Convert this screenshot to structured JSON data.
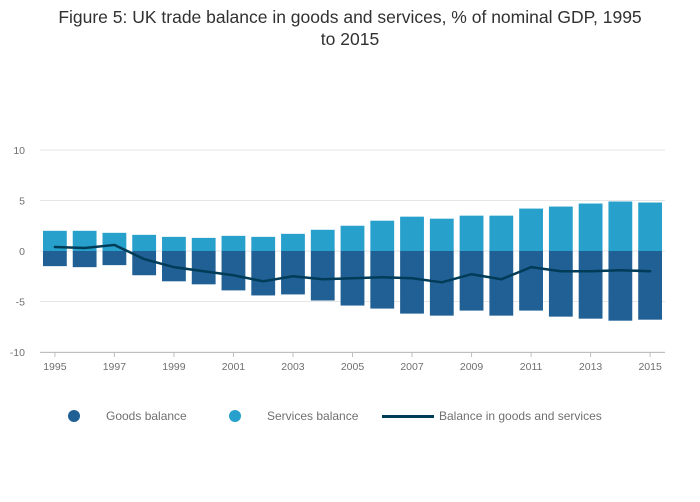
{
  "chart_data": {
    "type": "bar",
    "title_lines": [
      "Figure 5: UK trade balance in goods and services, % of nominal GDP, 1995",
      "to 2015"
    ],
    "xlabel": "",
    "ylabel": "",
    "x": [
      1995,
      1996,
      1997,
      1998,
      1999,
      2000,
      2001,
      2002,
      2003,
      2004,
      2005,
      2006,
      2007,
      2008,
      2009,
      2010,
      2011,
      2012,
      2013,
      2014,
      2015
    ],
    "x_tick_labels": [
      "1995",
      "1997",
      "1999",
      "2001",
      "2003",
      "2005",
      "2007",
      "2009",
      "2011",
      "2013",
      "2015"
    ],
    "ylim": [
      -10,
      10
    ],
    "y_ticks": [
      10,
      5,
      0,
      -5,
      -10
    ],
    "y_tick_labels": [
      "10",
      "5",
      "0",
      "-5",
      "-10"
    ],
    "grid": true,
    "legend_position": "bottom",
    "series": [
      {
        "name": "Goods balance",
        "type": "bar",
        "color": "#206095",
        "values": [
          -1.5,
          -1.6,
          -1.4,
          -2.4,
          -3.0,
          -3.3,
          -3.9,
          -4.4,
          -4.3,
          -4.9,
          -5.4,
          -5.7,
          -6.2,
          -6.4,
          -5.9,
          -6.4,
          -5.9,
          -6.5,
          -6.7,
          -6.9,
          -6.8
        ]
      },
      {
        "name": "Services balance",
        "type": "bar",
        "color": "#27a0cc",
        "values": [
          2.0,
          2.0,
          1.8,
          1.6,
          1.4,
          1.3,
          1.5,
          1.4,
          1.7,
          2.1,
          2.5,
          3.0,
          3.4,
          3.2,
          3.5,
          3.5,
          4.2,
          4.4,
          4.7,
          4.9,
          4.8
        ]
      },
      {
        "name": "Balance in goods and services",
        "type": "line",
        "color": "#003c57",
        "values": [
          0.4,
          0.3,
          0.6,
          -0.8,
          -1.6,
          -2.0,
          -2.4,
          -3.0,
          -2.5,
          -2.8,
          -2.7,
          -2.6,
          -2.7,
          -3.1,
          -2.3,
          -2.8,
          -1.6,
          -2.0,
          -2.0,
          -1.9,
          -2.0
        ]
      }
    ]
  }
}
